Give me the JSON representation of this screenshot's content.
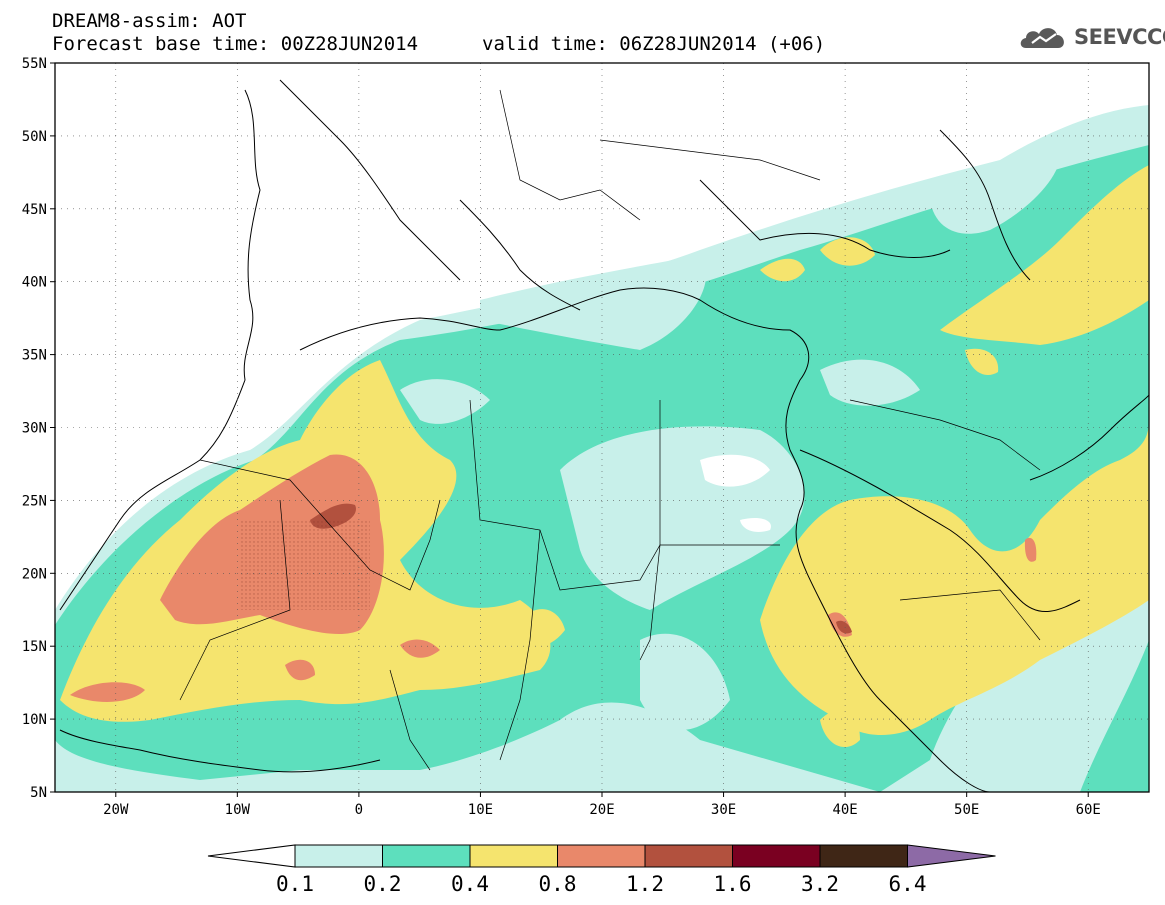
{
  "header": {
    "title": "DREAM8-assim: AOT",
    "base_time": "Forecast base time: 00Z28JUN2014",
    "valid_time": "valid time: 06Z28JUN2014 (+06)"
  },
  "logo": {
    "text": "SEEVCCC",
    "icon": "cloud-logo-icon"
  },
  "map": {
    "lat_labels": [
      "55N",
      "50N",
      "45N",
      "40N",
      "35N",
      "30N",
      "25N",
      "20N",
      "15N",
      "10N",
      "5N"
    ],
    "lon_labels": [
      "20W",
      "10W",
      "0",
      "10E",
      "20E",
      "30E",
      "40E",
      "50E",
      "60E"
    ],
    "lat_range": [
      5,
      55
    ],
    "lon_range": [
      -25,
      65
    ],
    "grid": "dotted"
  },
  "legend": {
    "colors": [
      "#c8f0ea",
      "#5ddfbd",
      "#f5e46e",
      "#e9886a",
      "#b2513e",
      "#7a0021",
      "#3f2616",
      "#8d6aa6"
    ],
    "labels": [
      "0.1",
      "0.2",
      "0.4",
      "0.8",
      "1.2",
      "1.6",
      "3.2",
      "6.4"
    ]
  }
}
